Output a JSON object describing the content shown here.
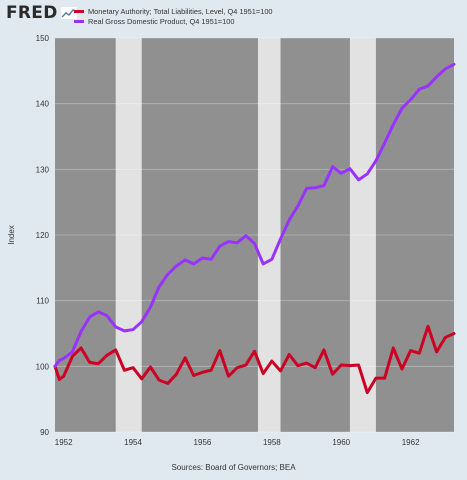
{
  "header": {
    "logo_text": "FRED",
    "logo_icon": "fred-graph-logo-icon"
  },
  "source_note": "Sources: Board of Governors; BEA",
  "chart_data": {
    "type": "line",
    "title": "",
    "xlabel": "",
    "ylabel": "Index",
    "xlim": [
      1951.75,
      1963.25
    ],
    "ylim": [
      90,
      150
    ],
    "y_ticks": [
      90,
      100,
      110,
      120,
      130,
      140,
      150
    ],
    "x_ticks": [
      1952,
      1954,
      1956,
      1958,
      1960,
      1962
    ],
    "x_tick_labels": [
      "1952",
      "1954",
      "1956",
      "1958",
      "1960",
      "1962"
    ],
    "y_tick_labels": [
      "90",
      "100",
      "110",
      "120",
      "130",
      "140",
      "150"
    ],
    "grid": true,
    "legend_position": "top-left",
    "background_color": "#909090",
    "recession_color": "#e2e2e2",
    "recessions": [
      [
        1953.5,
        1954.25
      ],
      [
        1957.6,
        1958.25
      ],
      [
        1960.25,
        1961.0
      ]
    ],
    "series": [
      {
        "name": "Monetary Authority; Total Liabilities, Level, Q4 1951=100",
        "color": "#cc0022",
        "x": [
          1951.75,
          1951.875,
          1952.0,
          1952.25,
          1952.5,
          1952.75,
          1953.0,
          1953.25,
          1953.5,
          1953.75,
          1954.0,
          1954.25,
          1954.5,
          1954.75,
          1955.0,
          1955.25,
          1955.5,
          1955.75,
          1956.0,
          1956.25,
          1956.5,
          1956.75,
          1957.0,
          1957.25,
          1957.5,
          1957.75,
          1958.0,
          1958.25,
          1958.5,
          1958.75,
          1959.0,
          1959.25,
          1959.5,
          1959.75,
          1960.0,
          1960.25,
          1960.5,
          1960.75,
          1961.0,
          1961.25,
          1961.5,
          1961.75,
          1962.0,
          1962.25,
          1962.5,
          1962.75,
          1963.0,
          1963.25
        ],
        "values": [
          100.0,
          98.0,
          98.5,
          101.5,
          102.8,
          100.6,
          100.4,
          101.7,
          102.5,
          99.4,
          99.8,
          98.1,
          99.9,
          97.9,
          97.4,
          98.8,
          101.3,
          98.6,
          99.1,
          99.4,
          102.4,
          98.5,
          99.8,
          100.2,
          102.3,
          98.9,
          100.8,
          99.3,
          101.8,
          100.1,
          100.5,
          99.8,
          102.5,
          98.8,
          100.2,
          100.1,
          100.2,
          96.0,
          98.2,
          98.2,
          102.8,
          99.6,
          102.4,
          102.0,
          106.1,
          102.2,
          104.4,
          105.0
        ]
      },
      {
        "name": "Real Gross Domestic Product, Q4 1951=100",
        "color": "#9a32ff",
        "x": [
          1951.75,
          1951.875,
          1952.0,
          1952.25,
          1952.5,
          1952.75,
          1953.0,
          1953.25,
          1953.5,
          1953.75,
          1954.0,
          1954.25,
          1954.5,
          1954.75,
          1955.0,
          1955.25,
          1955.5,
          1955.75,
          1956.0,
          1956.25,
          1956.5,
          1956.75,
          1957.0,
          1957.25,
          1957.5,
          1957.75,
          1958.0,
          1958.25,
          1958.5,
          1958.75,
          1959.0,
          1959.25,
          1959.5,
          1959.75,
          1960.0,
          1960.25,
          1960.5,
          1960.75,
          1961.0,
          1961.25,
          1961.5,
          1961.75,
          1962.0,
          1962.25,
          1962.5,
          1962.75,
          1963.0,
          1963.25
        ],
        "values": [
          100.0,
          100.9,
          101.2,
          102.2,
          105.3,
          107.5,
          108.3,
          107.7,
          106.0,
          105.4,
          105.6,
          106.8,
          109.0,
          112.1,
          114.0,
          115.3,
          116.2,
          115.6,
          116.5,
          116.3,
          118.3,
          119.0,
          118.8,
          119.9,
          118.7,
          115.6,
          116.3,
          119.4,
          122.3,
          124.4,
          127.1,
          127.2,
          127.5,
          130.4,
          129.4,
          130.1,
          128.4,
          129.3,
          131.3,
          134.0,
          136.8,
          139.3,
          140.6,
          142.2,
          142.7,
          144.1,
          145.3,
          146.0
        ]
      }
    ]
  }
}
